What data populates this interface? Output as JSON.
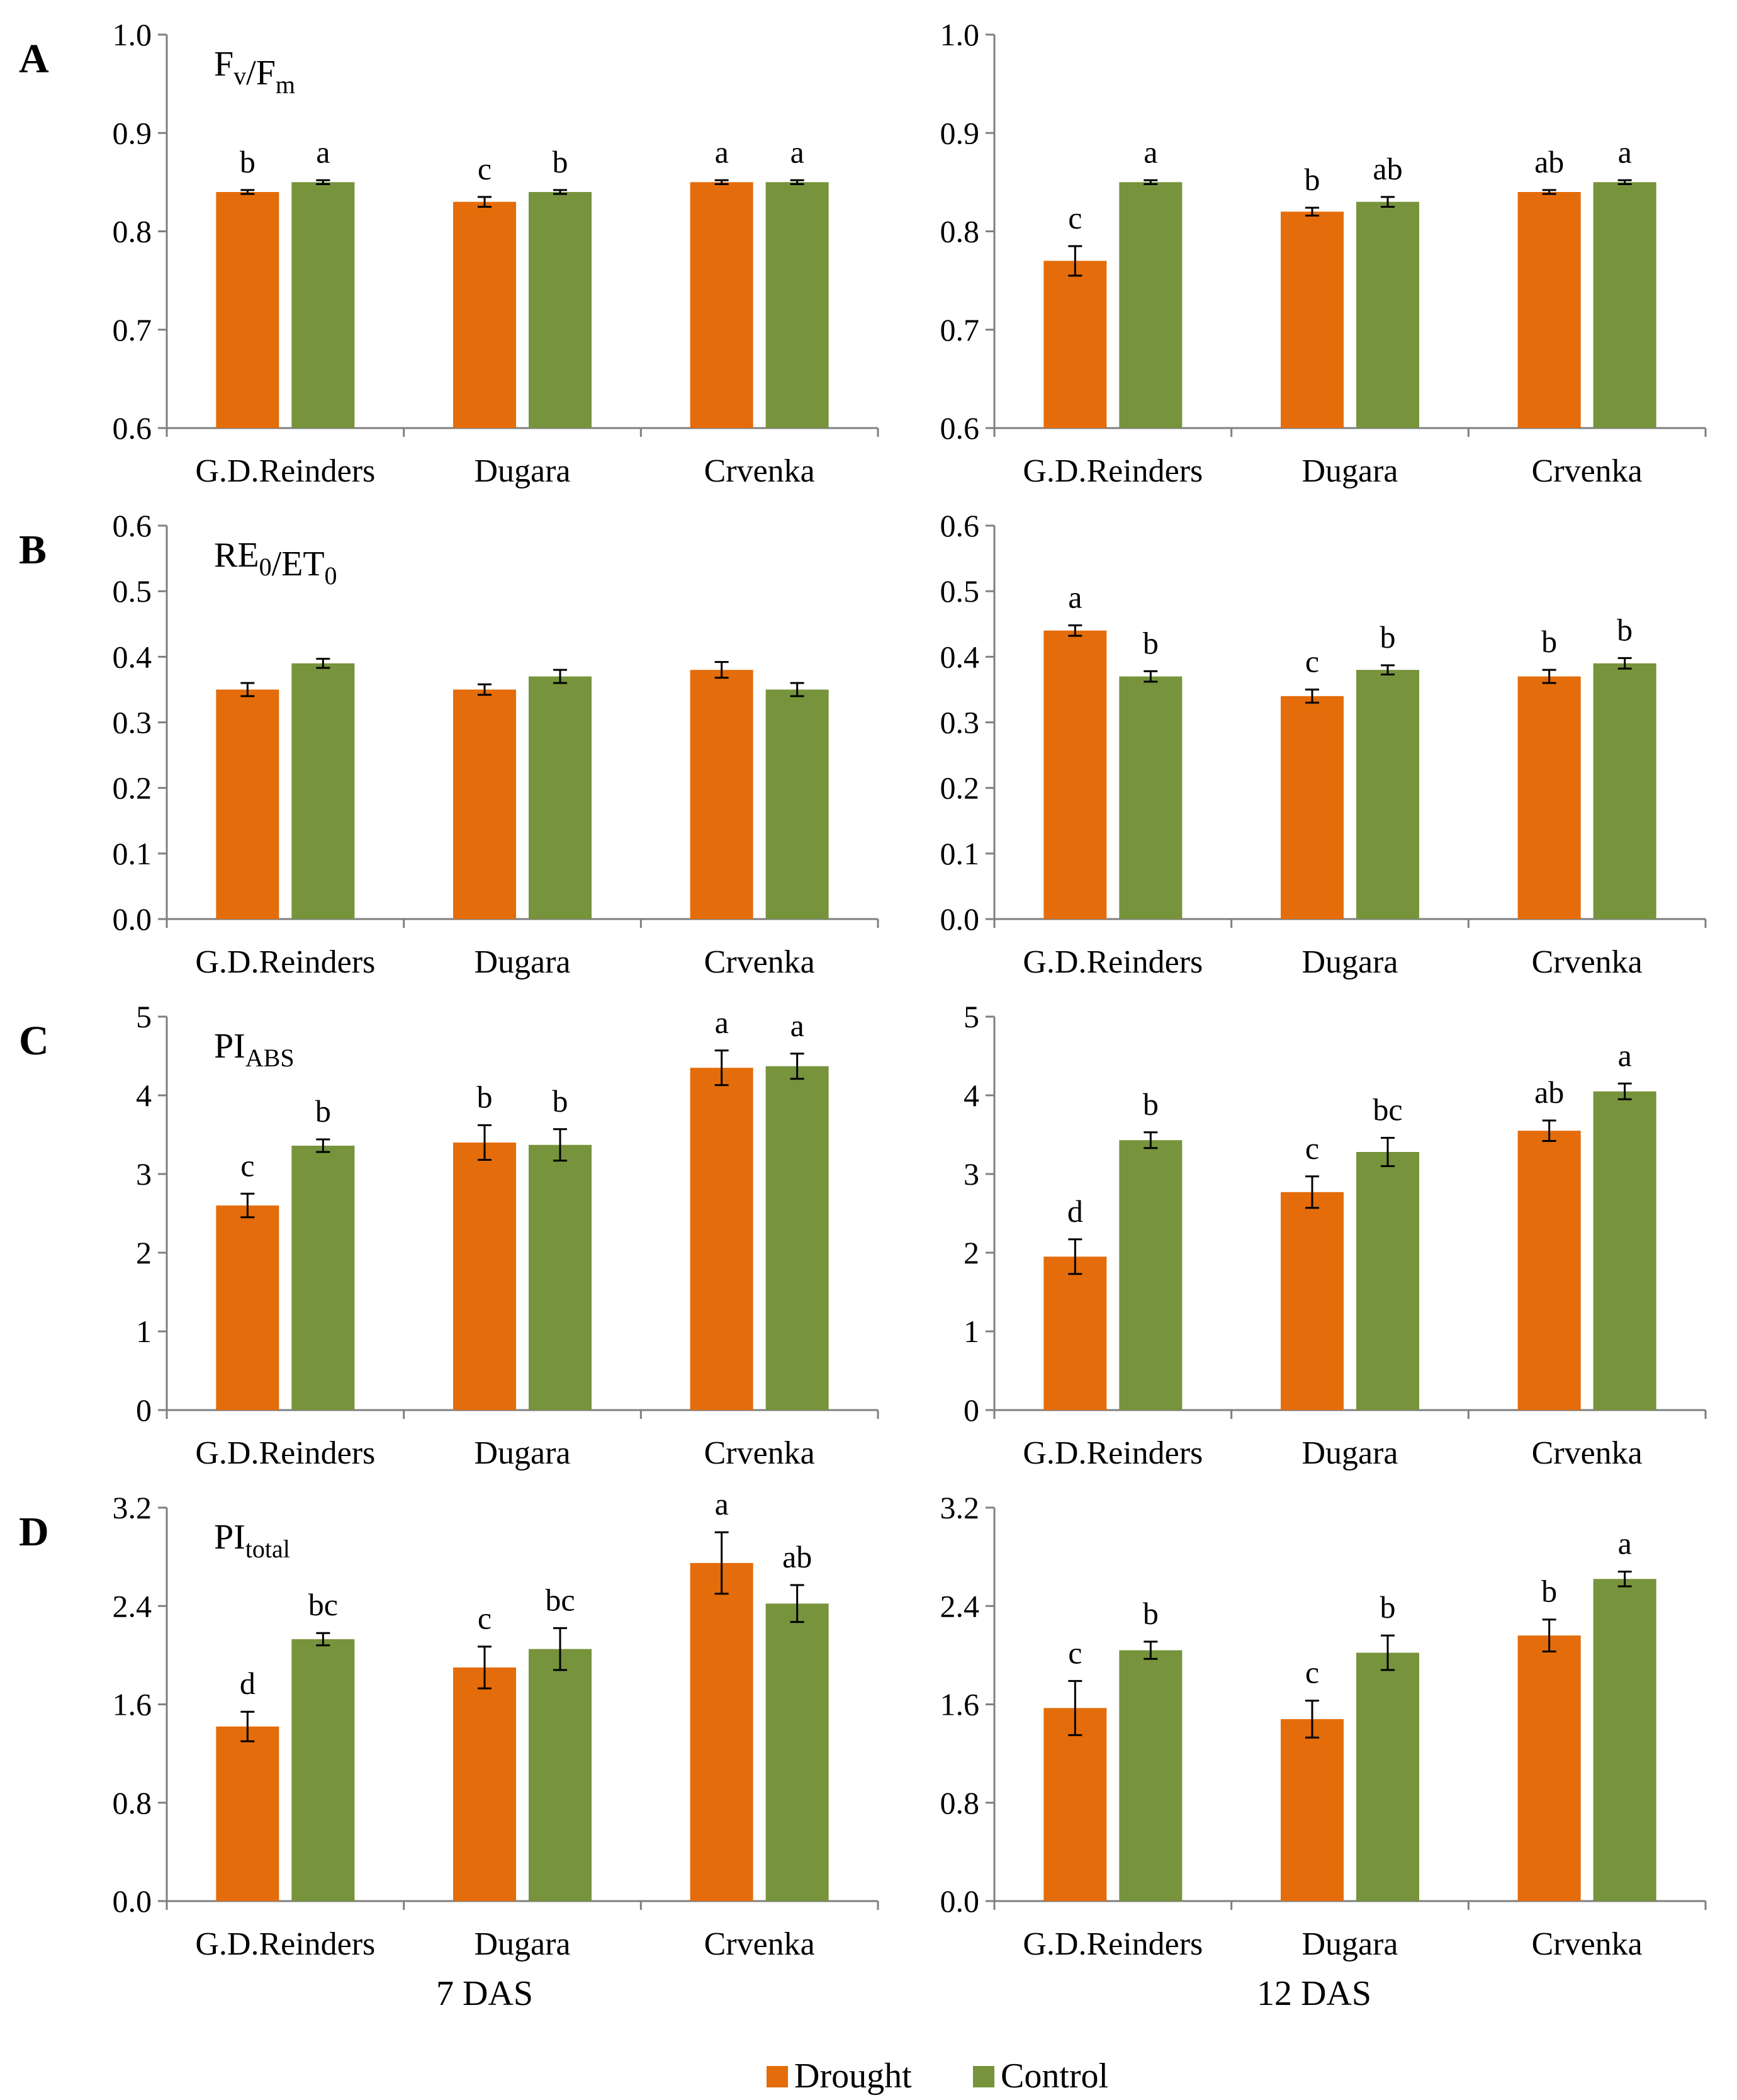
{
  "colors": {
    "drought": "#E46C0A",
    "control": "#77933C",
    "axis": "#7f7f7f"
  },
  "bottom_labels": {
    "left": "7 DAS",
    "right": "12 DAS"
  },
  "legend": {
    "drought": "Drought",
    "control": "Control"
  },
  "panels": [
    {
      "letter": "A",
      "metric": {
        "parts": [
          [
            "F",
            ""
          ],
          [
            "v",
            "sub"
          ],
          [
            "/F",
            ""
          ],
          [
            "m",
            "sub"
          ]
        ]
      }
    },
    {
      "letter": "B",
      "metric": {
        "parts": [
          [
            "RE",
            ""
          ],
          [
            "0",
            "sub"
          ],
          [
            "/ET",
            ""
          ],
          [
            "0",
            "sub"
          ]
        ]
      }
    },
    {
      "letter": "C",
      "metric": {
        "parts": [
          [
            "PI",
            ""
          ],
          [
            "ABS",
            "sub"
          ]
        ]
      }
    },
    {
      "letter": "D",
      "metric": {
        "parts": [
          [
            "PI",
            ""
          ],
          [
            "total",
            "sub"
          ]
        ]
      }
    }
  ],
  "chart_data": [
    {
      "type": "bar",
      "panel": "A",
      "metric": "Fv/Fm",
      "period": "7 DAS",
      "categories": [
        "G.D.Reinders",
        "Dugara",
        "Crvenka"
      ],
      "ylim": [
        0.6,
        1.0
      ],
      "yticks": [
        "0.6",
        "0.7",
        "0.8",
        "0.9",
        "1.0"
      ],
      "series": [
        {
          "name": "Drought",
          "values": [
            0.84,
            0.83,
            0.85
          ],
          "errors": [
            0.002,
            0.005,
            0.002
          ],
          "letters": [
            "b",
            "c",
            "a"
          ]
        },
        {
          "name": "Control",
          "values": [
            0.85,
            0.84,
            0.85
          ],
          "errors": [
            0.002,
            0.002,
            0.002
          ],
          "letters": [
            "a",
            "b",
            "a"
          ]
        }
      ]
    },
    {
      "type": "bar",
      "panel": "A",
      "metric": "Fv/Fm",
      "period": "12 DAS",
      "categories": [
        "G.D.Reinders",
        "Dugara",
        "Crvenka"
      ],
      "ylim": [
        0.6,
        1.0
      ],
      "yticks": [
        "0.6",
        "0.7",
        "0.8",
        "0.9",
        "1.0"
      ],
      "series": [
        {
          "name": "Drought",
          "values": [
            0.77,
            0.82,
            0.84
          ],
          "errors": [
            0.015,
            0.004,
            0.002
          ],
          "letters": [
            "c",
            "b",
            "ab"
          ]
        },
        {
          "name": "Control",
          "values": [
            0.85,
            0.83,
            0.85
          ],
          "errors": [
            0.002,
            0.005,
            0.002
          ],
          "letters": [
            "a",
            "ab",
            "a"
          ]
        }
      ]
    },
    {
      "type": "bar",
      "panel": "B",
      "metric": "RE0/ET0",
      "period": "7 DAS",
      "categories": [
        "G.D.Reinders",
        "Dugara",
        "Crvenka"
      ],
      "ylim": [
        0.0,
        0.6
      ],
      "yticks": [
        "0.0",
        "0.1",
        "0.2",
        "0.3",
        "0.4",
        "0.5",
        "0.6"
      ],
      "series": [
        {
          "name": "Drought",
          "values": [
            0.35,
            0.35,
            0.38
          ],
          "errors": [
            0.01,
            0.008,
            0.012
          ],
          "letters": [
            "",
            "",
            ""
          ]
        },
        {
          "name": "Control",
          "values": [
            0.39,
            0.37,
            0.35
          ],
          "errors": [
            0.007,
            0.01,
            0.01
          ],
          "letters": [
            "",
            "",
            ""
          ]
        }
      ]
    },
    {
      "type": "bar",
      "panel": "B",
      "metric": "RE0/ET0",
      "period": "12 DAS",
      "categories": [
        "G.D.Reinders",
        "Dugara",
        "Crvenka"
      ],
      "ylim": [
        0.0,
        0.6
      ],
      "yticks": [
        "0.0",
        "0.1",
        "0.2",
        "0.3",
        "0.4",
        "0.5",
        "0.6"
      ],
      "series": [
        {
          "name": "Drought",
          "values": [
            0.44,
            0.34,
            0.37
          ],
          "errors": [
            0.008,
            0.01,
            0.01
          ],
          "letters": [
            "a",
            "c",
            "b"
          ]
        },
        {
          "name": "Control",
          "values": [
            0.37,
            0.38,
            0.39
          ],
          "errors": [
            0.008,
            0.007,
            0.008
          ],
          "letters": [
            "b",
            "b",
            "b"
          ]
        }
      ]
    },
    {
      "type": "bar",
      "panel": "C",
      "metric": "PIABS",
      "period": "7 DAS",
      "categories": [
        "G.D.Reinders",
        "Dugara",
        "Crvenka"
      ],
      "ylim": [
        0,
        5
      ],
      "yticks": [
        "0",
        "1",
        "2",
        "3",
        "4",
        "5"
      ],
      "series": [
        {
          "name": "Drought",
          "values": [
            2.6,
            3.4,
            4.35
          ],
          "errors": [
            0.15,
            0.22,
            0.22
          ],
          "letters": [
            "c",
            "b",
            "a"
          ]
        },
        {
          "name": "Control",
          "values": [
            3.36,
            3.37,
            4.37
          ],
          "errors": [
            0.08,
            0.2,
            0.16
          ],
          "letters": [
            "b",
            "b",
            "a"
          ]
        }
      ]
    },
    {
      "type": "bar",
      "panel": "C",
      "metric": "PIABS",
      "period": "12 DAS",
      "categories": [
        "G.D.Reinders",
        "Dugara",
        "Crvenka"
      ],
      "ylim": [
        0,
        5
      ],
      "yticks": [
        "0",
        "1",
        "2",
        "3",
        "4",
        "5"
      ],
      "series": [
        {
          "name": "Drought",
          "values": [
            1.95,
            2.77,
            3.55
          ],
          "errors": [
            0.22,
            0.2,
            0.13
          ],
          "letters": [
            "d",
            "c",
            "ab"
          ]
        },
        {
          "name": "Control",
          "values": [
            3.43,
            3.28,
            4.05
          ],
          "errors": [
            0.1,
            0.18,
            0.1
          ],
          "letters": [
            "b",
            "bc",
            "a"
          ]
        }
      ]
    },
    {
      "type": "bar",
      "panel": "D",
      "metric": "PItotal",
      "period": "7 DAS",
      "categories": [
        "G.D.Reinders",
        "Dugara",
        "Crvenka"
      ],
      "ylim": [
        0.0,
        3.2
      ],
      "yticks": [
        "0.0",
        "0.8",
        "1.6",
        "2.4",
        "3.2"
      ],
      "series": [
        {
          "name": "Drought",
          "values": [
            1.42,
            1.9,
            2.75
          ],
          "errors": [
            0.12,
            0.17,
            0.25
          ],
          "letters": [
            "d",
            "c",
            "a"
          ]
        },
        {
          "name": "Control",
          "values": [
            2.13,
            2.05,
            2.42
          ],
          "errors": [
            0.05,
            0.17,
            0.15
          ],
          "letters": [
            "bc",
            "bc",
            "ab"
          ]
        }
      ]
    },
    {
      "type": "bar",
      "panel": "D",
      "metric": "PItotal",
      "period": "12 DAS",
      "categories": [
        "G.D.Reinders",
        "Dugara",
        "Crvenka"
      ],
      "ylim": [
        0.0,
        3.2
      ],
      "yticks": [
        "0.0",
        "0.8",
        "1.6",
        "2.4",
        "3.2"
      ],
      "series": [
        {
          "name": "Drought",
          "values": [
            1.57,
            1.48,
            2.16
          ],
          "errors": [
            0.22,
            0.15,
            0.13
          ],
          "letters": [
            "c",
            "c",
            "b"
          ]
        },
        {
          "name": "Control",
          "values": [
            2.04,
            2.02,
            2.62
          ],
          "errors": [
            0.07,
            0.14,
            0.06
          ],
          "letters": [
            "b",
            "b",
            "a"
          ]
        }
      ]
    }
  ]
}
